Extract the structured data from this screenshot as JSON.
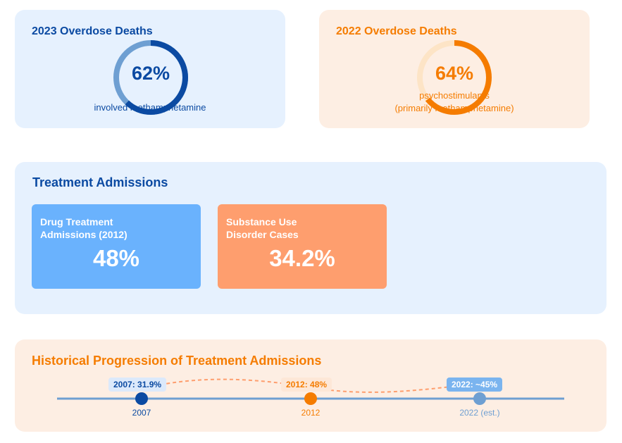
{
  "overdose_2023": {
    "title": "2023 Overdose Deaths",
    "percent": 62,
    "value_label": "62%",
    "caption": "involved methamphetamine"
  },
  "overdose_2022": {
    "title": "2022 Overdose Deaths",
    "percent": 64,
    "value_label": "64%",
    "caption_line1": "psychostimulants",
    "caption_line2": "(primarily methamphetamine)"
  },
  "treatment": {
    "title": "Treatment Admissions",
    "cards": [
      {
        "label": "Drug Treatment\nAdmissions (2012)",
        "value": "48%"
      },
      {
        "label": "Substance Use\nDisorder Cases",
        "value": "34.2%"
      }
    ]
  },
  "history": {
    "title": "Historical Progression of Treatment Admissions",
    "points": [
      {
        "year_label": "2007",
        "bubble": "2007: 31.9%"
      },
      {
        "year_label": "2012",
        "bubble": "2012: 48%"
      },
      {
        "year_label": "2022 (est.)",
        "bubble": "2022: ~45%"
      }
    ]
  },
  "colors": {
    "blue": "#0b4aa2",
    "orange": "#f57c00",
    "light_blue": "#6ab2fd",
    "salmon": "#fe9e6e",
    "muted_blue": "#6e9fd2"
  }
}
